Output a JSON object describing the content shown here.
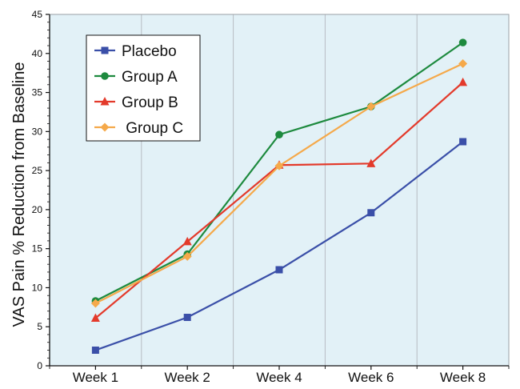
{
  "chart_data": {
    "type": "line",
    "title": "",
    "xlabel": "",
    "ylabel": "VAS  Pain  % Reduction from Baseline",
    "ylim": [
      0,
      45
    ],
    "yticks": [
      0,
      5,
      10,
      15,
      20,
      25,
      30,
      35,
      40,
      45
    ],
    "categories": [
      "Week 1",
      "Week 2",
      "Week 4",
      "Week 6",
      "Week 8"
    ],
    "grid": true,
    "legend_position": "top-left",
    "background_color": "#e2f1f7",
    "series": [
      {
        "name": "Placebo",
        "color": "#3a4fa8",
        "marker": "square",
        "values": [
          2.0,
          6.2,
          12.3,
          19.6,
          28.7
        ]
      },
      {
        "name": "Group A",
        "color": "#1d8a3e",
        "marker": "circle",
        "values": [
          8.3,
          14.3,
          29.6,
          33.2,
          41.4
        ]
      },
      {
        "name": "Group B",
        "color": "#e33a2b",
        "marker": "triangle",
        "values": [
          6.1,
          15.9,
          25.7,
          25.9,
          36.3
        ]
      },
      {
        "name": " Group C",
        "color": "#f5a94a",
        "marker": "diamond",
        "values": [
          8.0,
          14.0,
          25.6,
          33.2,
          38.7
        ]
      }
    ]
  }
}
